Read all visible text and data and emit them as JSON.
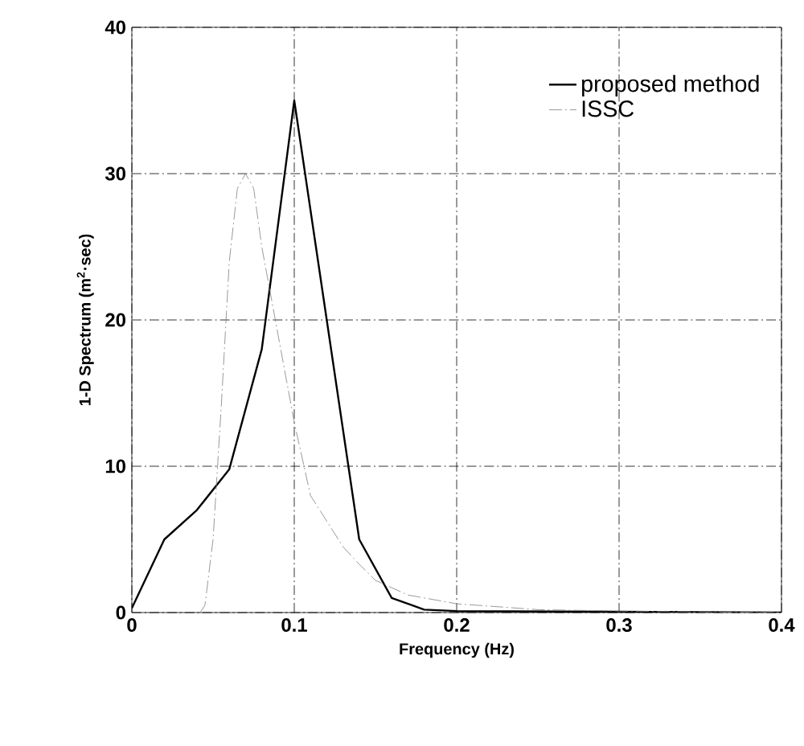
{
  "chart_data": {
    "type": "line",
    "xlabel": "Frequency (Hz)",
    "ylabel": "1-D Spectrum (m$^{2}$·sec)",
    "xlim": [
      0,
      0.4
    ],
    "xticks": [
      0,
      0.1,
      0.2,
      0.3,
      0.4
    ],
    "ylim": [
      0,
      40
    ],
    "yticks": [
      0,
      10,
      20,
      30,
      40
    ],
    "grid": true,
    "legend": "top right",
    "series": [
      {
        "name": "proposed method",
        "color": "#000000",
        "line_style": "solid",
        "x": [
          0,
          0.02,
          0.04,
          0.06,
          0.08,
          0.1,
          0.12,
          0.14,
          0.16,
          0.18,
          0.2,
          0.4
        ],
        "values": [
          0.3,
          5,
          7,
          9.8,
          18,
          35,
          20,
          5,
          1,
          0.2,
          0.1,
          0
        ]
      },
      {
        "name": "ISSC",
        "color": "#808080",
        "line_style": "dashed",
        "x": [
          0.042,
          0.045,
          0.05,
          0.055,
          0.06,
          0.065,
          0.07,
          0.075,
          0.08,
          0.09,
          0.1,
          0.11,
          0.13,
          0.14,
          0.15,
          0.17,
          0.2,
          0.25,
          0.3,
          0.4
        ],
        "values": [
          0,
          0.5,
          5,
          14,
          24,
          29,
          30,
          29,
          25,
          19,
          13,
          8,
          4.5,
          3.3,
          2.2,
          1.2,
          0.6,
          0.2,
          0.1,
          0
        ]
      }
    ]
  }
}
